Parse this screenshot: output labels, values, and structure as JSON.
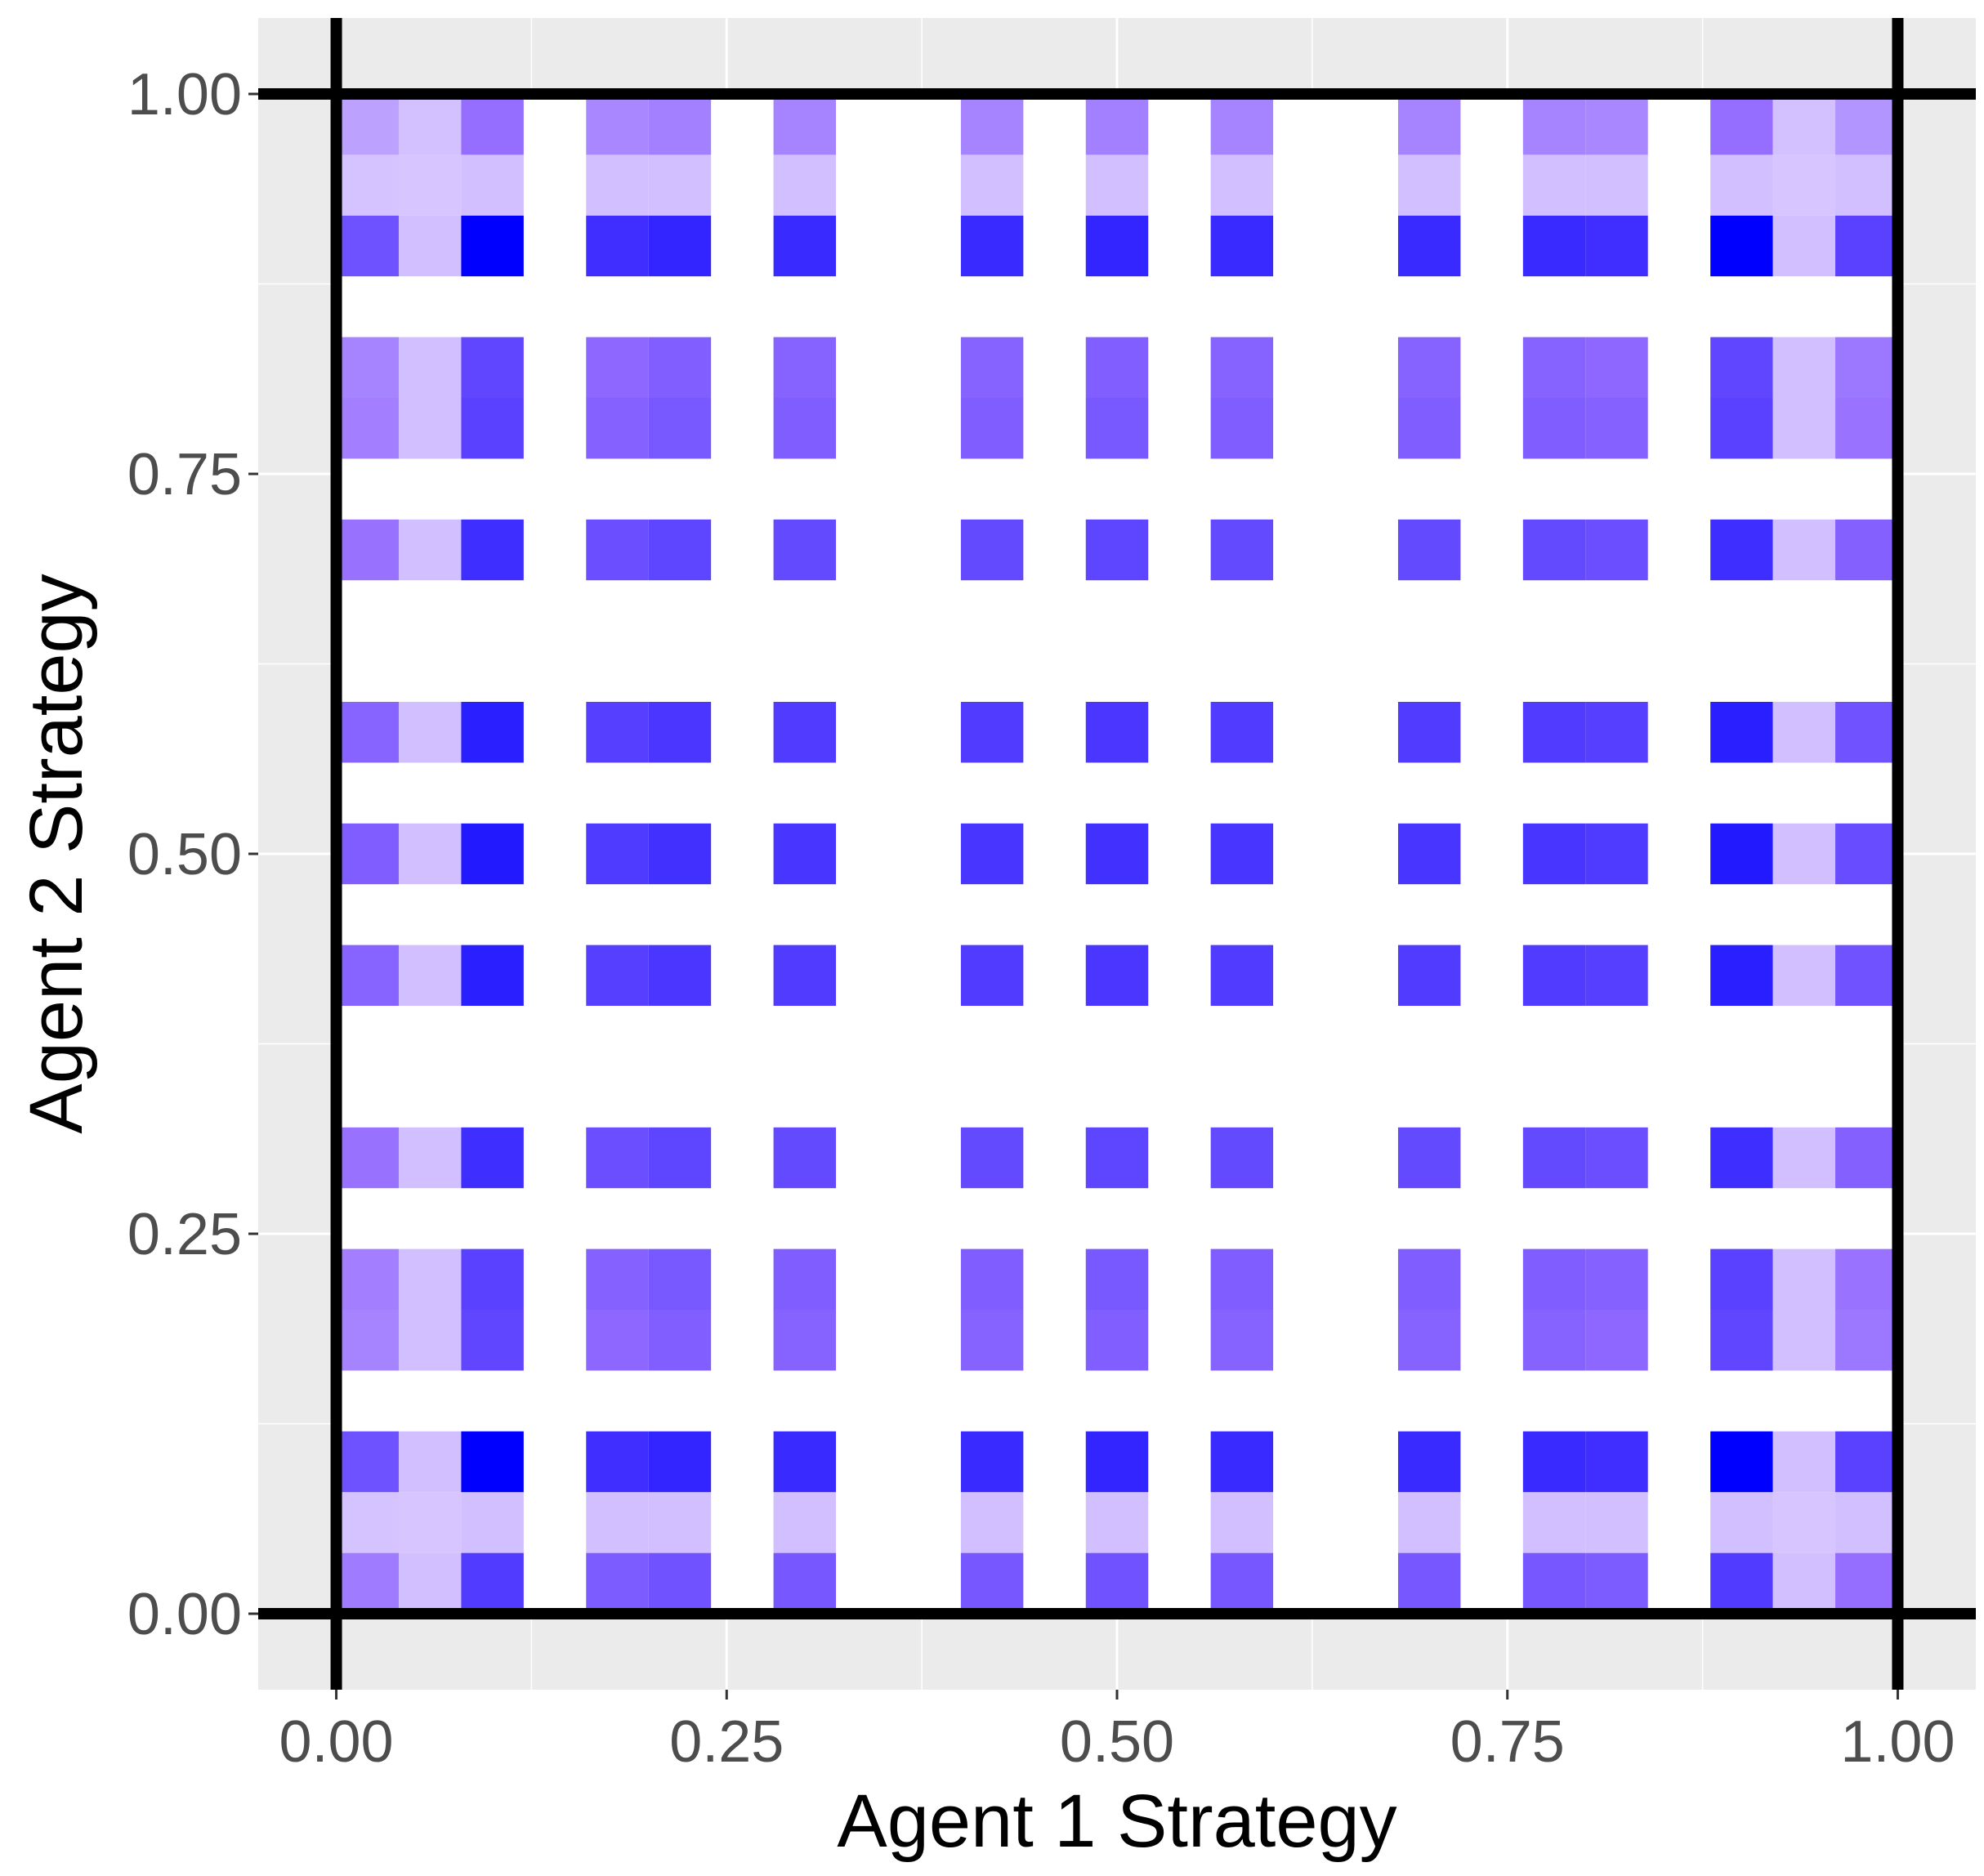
{
  "chart_data": {
    "type": "heatmap",
    "xlabel": "Agent 1 Strategy",
    "ylabel": "Agent 2 Strategy",
    "xlim": [
      -0.05,
      1.05
    ],
    "ylim": [
      -0.05,
      1.05
    ],
    "x_ticks": [
      "0.00",
      "0.25",
      "0.50",
      "0.75",
      "1.00"
    ],
    "y_ticks": [
      "0.00",
      "0.25",
      "0.50",
      "0.75",
      "1.00"
    ],
    "reference_lines": {
      "x": [
        0,
        1
      ],
      "y": [
        0,
        1
      ]
    },
    "grid": true,
    "legend": "none",
    "colors": {
      "panel_background": "#ebebeb",
      "grid": "#ffffff",
      "low": "#f1eaff",
      "high": "#0000ff",
      "reference_line": "#000000"
    },
    "cell_size": 0.04,
    "x": [
      0.02,
      0.06,
      0.1,
      0.18,
      0.22,
      0.3,
      0.42,
      0.5,
      0.58,
      0.7,
      0.78,
      0.82,
      0.9,
      0.94,
      0.98
    ],
    "y": [
      0.02,
      0.06,
      0.1,
      0.18,
      0.22,
      0.3,
      0.42,
      0.5,
      0.58,
      0.7,
      0.78,
      0.82,
      0.9,
      0.94,
      0.98
    ],
    "row_weights": [
      0.6,
      0.06,
      1.0,
      0.5,
      0.55,
      0.72,
      0.85,
      0.9,
      0.85,
      0.72,
      0.55,
      0.5,
      1.0,
      0.06,
      0.15
    ],
    "col_weights": [
      0.12,
      0.06,
      0.85,
      0.5,
      0.6,
      0.55,
      0.55,
      0.6,
      0.55,
      0.55,
      0.55,
      0.5,
      0.85,
      0.06,
      0.3
    ],
    "hotspots": [
      [
        2,
        2
      ],
      [
        12,
        2
      ],
      [
        2,
        12
      ],
      [
        12,
        12
      ]
    ]
  }
}
